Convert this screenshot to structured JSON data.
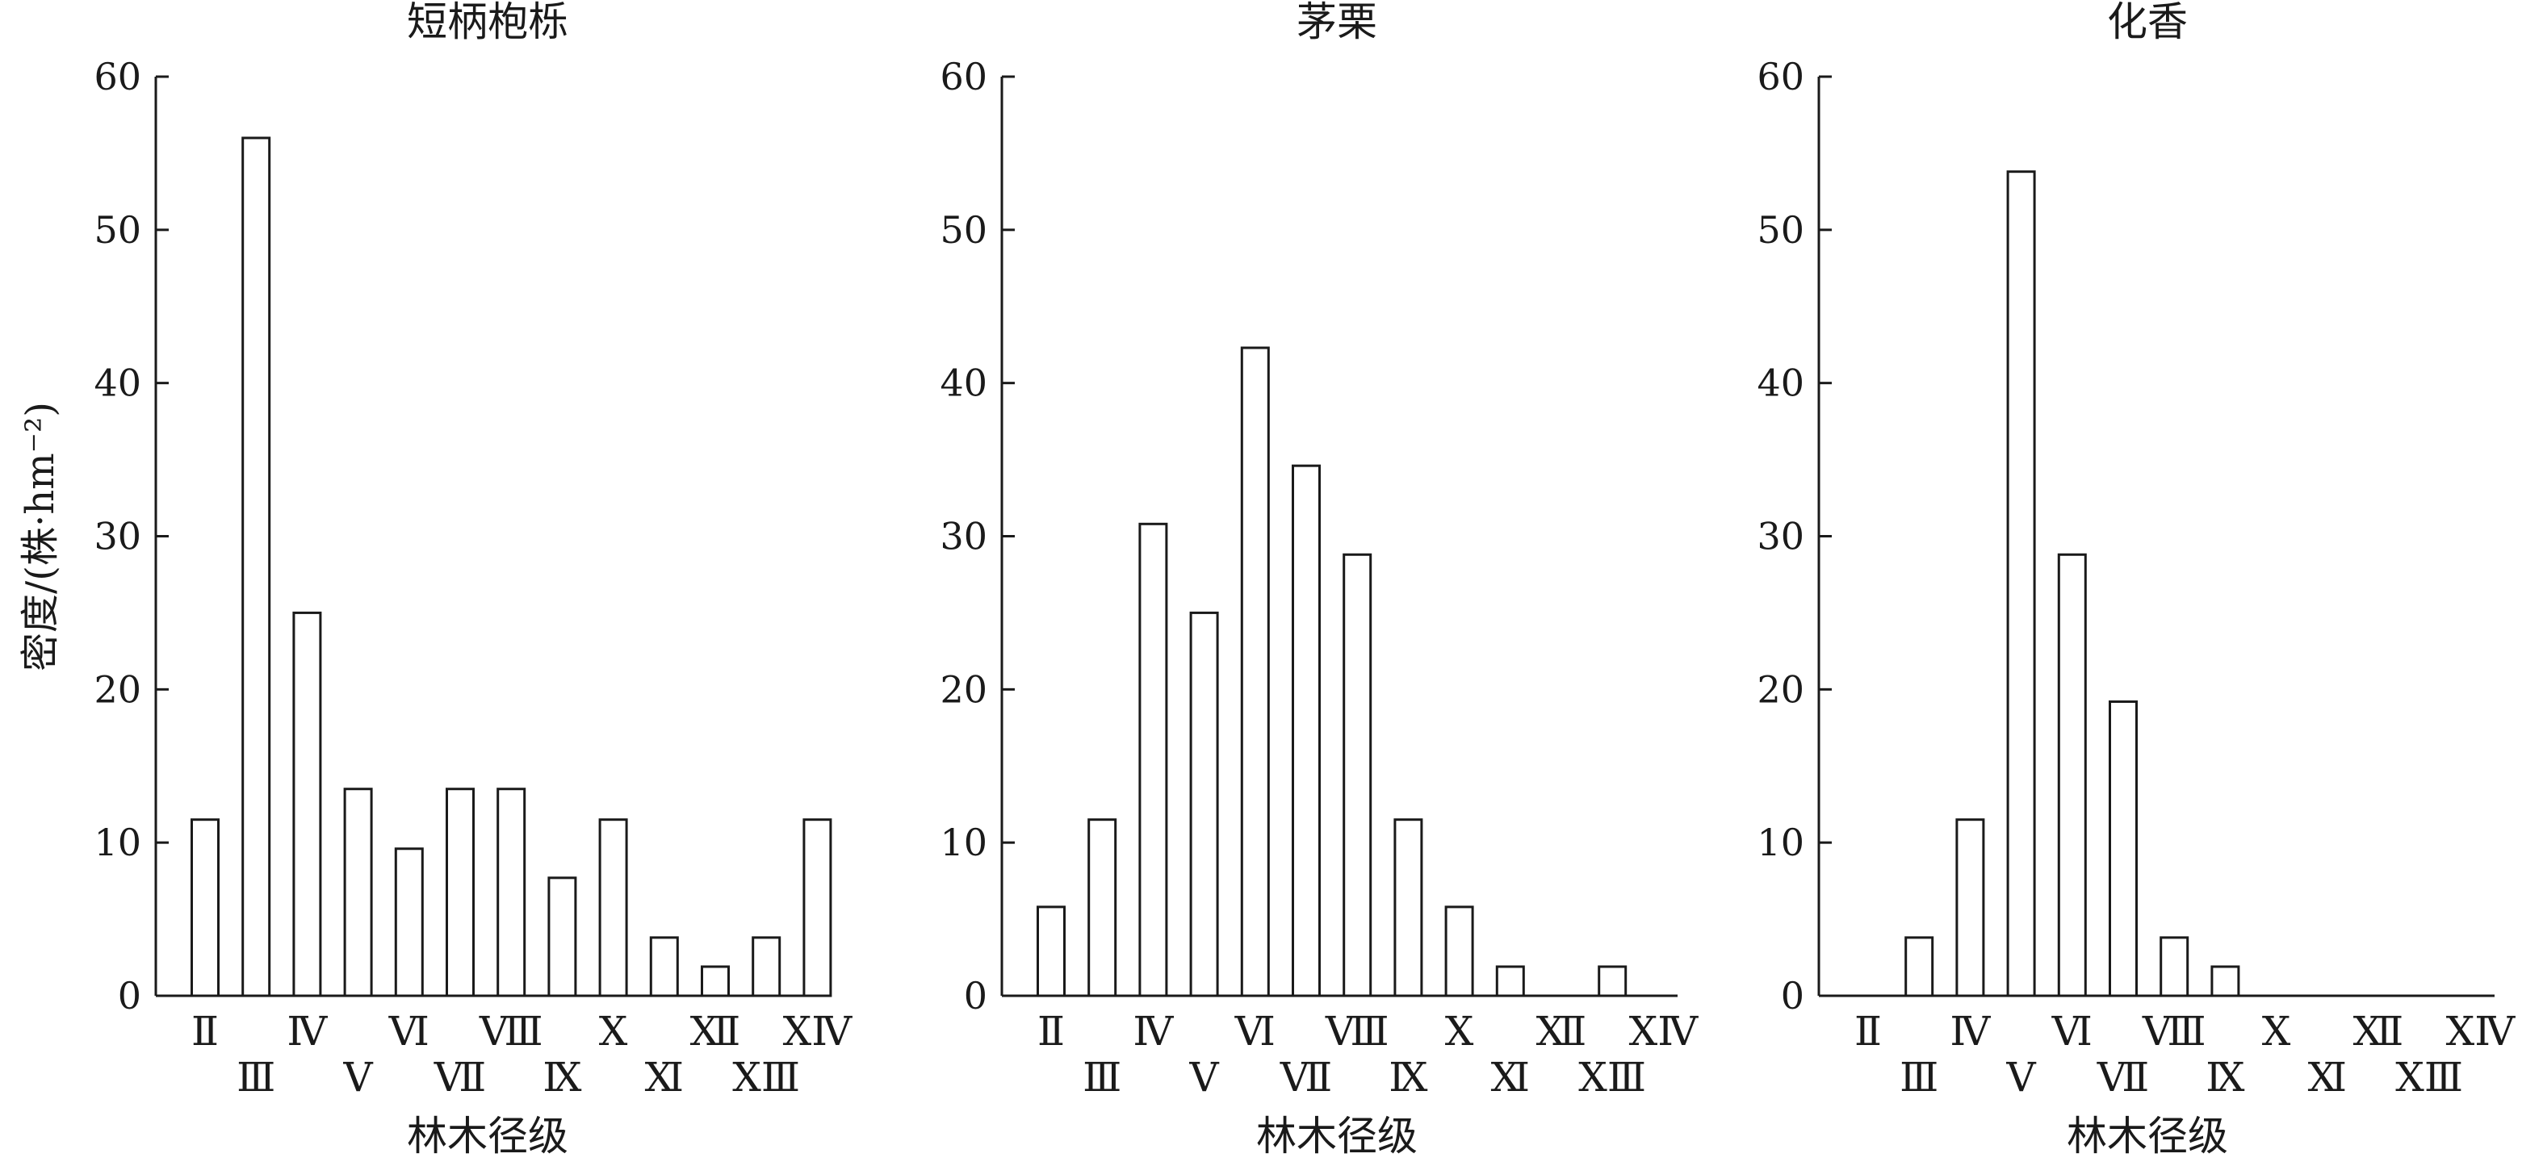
{
  "chart_data": [
    {
      "type": "bar",
      "title": "短柄枹栎",
      "xlabel": "林木径级",
      "ylabel": "密度/(株·hm⁻²)",
      "ylim": [
        0,
        60
      ],
      "yticks": [
        0,
        10,
        20,
        30,
        40,
        50,
        60
      ],
      "categories": [
        "Ⅱ",
        "Ⅲ",
        "Ⅳ",
        "Ⅴ",
        "Ⅵ",
        "Ⅶ",
        "Ⅷ",
        "Ⅸ",
        "Ⅹ",
        "Ⅺ",
        "Ⅻ",
        "ⅩⅢ",
        "ⅩⅣ"
      ],
      "values": [
        11.5,
        56,
        25,
        13.5,
        9.6,
        13.5,
        13.5,
        7.7,
        11.5,
        3.8,
        1.9,
        3.8,
        11.5
      ],
      "grid": false,
      "legend": false
    },
    {
      "type": "bar",
      "title": "茅栗",
      "xlabel": "林木径级",
      "ylabel": "",
      "ylim": [
        0,
        60
      ],
      "yticks": [
        0,
        10,
        20,
        30,
        40,
        50,
        60
      ],
      "categories": [
        "Ⅱ",
        "Ⅲ",
        "Ⅳ",
        "Ⅴ",
        "Ⅵ",
        "Ⅶ",
        "Ⅷ",
        "Ⅸ",
        "Ⅹ",
        "Ⅺ",
        "Ⅻ",
        "ⅩⅢ",
        "ⅩⅣ"
      ],
      "values": [
        5.8,
        11.5,
        30.8,
        25,
        42.3,
        34.6,
        28.8,
        11.5,
        5.8,
        1.9,
        0,
        1.9,
        0
      ],
      "grid": false,
      "legend": false
    },
    {
      "type": "bar",
      "title": "化香",
      "xlabel": "林木径级",
      "ylabel": "",
      "ylim": [
        0,
        60
      ],
      "yticks": [
        0,
        10,
        20,
        30,
        40,
        50,
        60
      ],
      "categories": [
        "Ⅱ",
        "Ⅲ",
        "Ⅳ",
        "Ⅴ",
        "Ⅵ",
        "Ⅶ",
        "Ⅷ",
        "Ⅸ",
        "Ⅹ",
        "Ⅺ",
        "Ⅻ",
        "ⅩⅢ",
        "ⅩⅣ"
      ],
      "values": [
        0,
        3.8,
        11.5,
        53.8,
        28.8,
        19.2,
        3.8,
        1.9,
        0,
        0,
        0,
        0,
        0
      ],
      "grid": false,
      "legend": false
    }
  ]
}
